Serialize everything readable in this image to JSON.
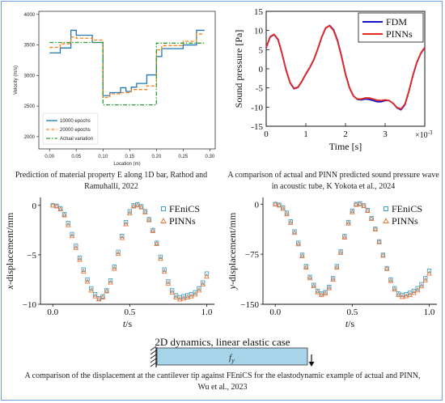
{
  "captions": {
    "panel_a": [
      "Prediction of material property E along 1D bar, Rathod and",
      "Ramuhalli, 2022"
    ],
    "panel_b": [
      "A comparison of actual and PINN predicted sound pressure wave",
      "in acoustic tube, K Yokota et al., 2024"
    ],
    "bottom": [
      "A comparison of the displacement at the cantilever tip against FEniCS for the elastodynamic example of actual and PINN,",
      "Wu et al., 2023"
    ]
  },
  "bottom_diagram": {
    "title": "2D dynamics, linear elastic case",
    "force_label": "f",
    "force_sub": "y"
  },
  "colors": {
    "epochs10000": "#1f77b4",
    "epochs20000": "#ff7f0e",
    "actual": "#2ca02c",
    "fdm": "#1414c8",
    "pinns_red": "#e8281e",
    "fenics": "#3aa3cc",
    "pinns_orange": "#e8773c",
    "beam": "#a8d4ea"
  },
  "chart_data": [
    {
      "type": "line",
      "xlabel": "Location (m)",
      "ylabel": "Velocity (m/s)",
      "xlim": [
        -0.02,
        0.31
      ],
      "ylim": [
        1800,
        4050
      ],
      "xticks": [
        0.0,
        0.05,
        0.1,
        0.15,
        0.2,
        0.25,
        0.3
      ],
      "xtick_labels": [
        "0.00",
        "0.05",
        "0.10",
        "0.15",
        "0.20",
        "0.25",
        "0.30"
      ],
      "yticks": [
        2000,
        2500,
        3000,
        3500,
        4000
      ],
      "ytick_labels": [
        "2000",
        "2500",
        "3000",
        "3500",
        "4000"
      ],
      "legend_position": "bottom-left",
      "series": [
        {
          "name": "10000 epochs",
          "color_key": "epochs10000",
          "dash": "solid",
          "x": [
            0.0,
            0.02,
            0.02,
            0.04,
            0.04,
            0.05,
            0.05,
            0.08,
            0.08,
            0.1,
            0.1,
            0.113,
            0.113,
            0.133,
            0.133,
            0.143,
            0.143,
            0.153,
            0.153,
            0.163,
            0.163,
            0.182,
            0.182,
            0.2,
            0.2,
            0.21,
            0.21,
            0.25,
            0.25,
            0.275,
            0.275,
            0.29
          ],
          "y": [
            3370,
            3370,
            3450,
            3450,
            3740,
            3740,
            3660,
            3660,
            3540,
            3540,
            2670,
            2670,
            2720,
            2720,
            2800,
            2800,
            2740,
            2740,
            2810,
            2810,
            2870,
            2870,
            3010,
            3010,
            3310,
            3310,
            3440,
            3440,
            3500,
            3500,
            3740,
            3740
          ]
        },
        {
          "name": "20000 epochs",
          "color_key": "epochs20000",
          "dash": "dashed",
          "x": [
            0.0,
            0.02,
            0.02,
            0.04,
            0.04,
            0.05,
            0.05,
            0.08,
            0.08,
            0.1,
            0.1,
            0.113,
            0.113,
            0.133,
            0.133,
            0.153,
            0.153,
            0.182,
            0.182,
            0.2,
            0.2,
            0.21,
            0.21,
            0.25,
            0.25,
            0.275,
            0.275,
            0.29
          ],
          "y": [
            3460,
            3460,
            3520,
            3520,
            3630,
            3630,
            3610,
            3610,
            3580,
            3580,
            2640,
            2640,
            2700,
            2700,
            2720,
            2720,
            2770,
            2770,
            2830,
            2830,
            3420,
            3420,
            3490,
            3490,
            3560,
            3560,
            3680,
            3680
          ]
        },
        {
          "name": "Actual variation",
          "color_key": "actual",
          "dash": "dashdot",
          "x": [
            0.0,
            0.1,
            0.1,
            0.2,
            0.2,
            0.29
          ],
          "y": [
            3540,
            3540,
            2520,
            2520,
            3530,
            3530
          ]
        }
      ]
    },
    {
      "type": "line",
      "xlabel": "Time [s]",
      "ylabel": "Sound pressure [Pa]",
      "x_multiplier": "×10",
      "x_multiplier_exp": "-3",
      "xlim": [
        0,
        4
      ],
      "ylim": [
        -15,
        15
      ],
      "xticks": [
        0,
        1,
        2,
        3
      ],
      "xtick_labels": [
        "0",
        "1",
        "2",
        "3"
      ],
      "yticks": [
        -15,
        -10,
        -5,
        0,
        5,
        10,
        15
      ],
      "ytick_labels": [
        "-15",
        "-10",
        "-5",
        "0",
        "5",
        "10",
        "15"
      ],
      "legend_position": "top-right",
      "series": [
        {
          "name": "FDM",
          "color_key": "fdm",
          "x": [
            0,
            0.1,
            0.2,
            0.3,
            0.4,
            0.5,
            0.6,
            0.7,
            0.8,
            0.9,
            1.0,
            1.1,
            1.2,
            1.3,
            1.4,
            1.5,
            1.6,
            1.7,
            1.8,
            1.9,
            2.0,
            2.1,
            2.2,
            2.3,
            2.4,
            2.5,
            2.6,
            2.7,
            2.8,
            2.9,
            3.0,
            3.1,
            3.2,
            3.3,
            3.4,
            3.5,
            3.6,
            3.7,
            3.8,
            3.9,
            4.0
          ],
          "y": [
            5.5,
            8.3,
            8.9,
            7.6,
            3.9,
            -0.3,
            -3.6,
            -5.2,
            -4.9,
            -3.3,
            -1.4,
            0.3,
            2.3,
            5.1,
            8.2,
            10.6,
            11.3,
            10.2,
            7.4,
            3.3,
            -1.3,
            -4.9,
            -7.1,
            -8.0,
            -8.1,
            -7.9,
            -8.0,
            -8.3,
            -8.6,
            -8.6,
            -8.3,
            -8.3,
            -9.0,
            -10.2,
            -10.7,
            -9.4,
            -5.9,
            -1.8,
            1.6,
            4.0,
            5.5
          ]
        },
        {
          "name": "PINNs",
          "color_key": "pinns_red",
          "x": [
            0,
            0.1,
            0.2,
            0.3,
            0.4,
            0.5,
            0.6,
            0.7,
            0.8,
            0.9,
            1.0,
            1.1,
            1.2,
            1.3,
            1.4,
            1.5,
            1.6,
            1.7,
            1.8,
            1.9,
            2.0,
            2.1,
            2.2,
            2.3,
            2.4,
            2.5,
            2.6,
            2.7,
            2.8,
            2.9,
            3.0,
            3.1,
            3.2,
            3.3,
            3.4,
            3.5,
            3.6,
            3.7,
            3.8,
            3.9,
            4.0
          ],
          "y": [
            5.6,
            8.4,
            9.0,
            7.7,
            4.0,
            -0.2,
            -3.5,
            -5.1,
            -4.8,
            -3.2,
            -1.3,
            0.4,
            2.4,
            5.2,
            8.3,
            10.7,
            11.2,
            10.0,
            7.2,
            3.1,
            -1.4,
            -5.0,
            -7.1,
            -7.9,
            -7.9,
            -7.6,
            -7.6,
            -7.9,
            -8.2,
            -8.3,
            -8.1,
            -8.3,
            -9.0,
            -10.1,
            -10.5,
            -9.2,
            -5.8,
            -1.7,
            1.7,
            4.1,
            5.6
          ]
        }
      ]
    },
    {
      "type": "scatter",
      "xlabel_var": "t",
      "xlabel_unit": "/s",
      "ylabel_var": "x",
      "ylabel_rest": "-displacement/mm",
      "xlim": [
        -0.08,
        1.05
      ],
      "ylim": [
        -10,
        0.8
      ],
      "xticks": [
        0,
        0.5,
        1.0
      ],
      "xtick_labels": [
        "0.0",
        "0.5",
        "1.0"
      ],
      "yticks": [
        0,
        -5,
        -10
      ],
      "ytick_labels": [
        "0",
        "−5",
        "−10"
      ],
      "legend_position": "top-right",
      "series": [
        {
          "name": "FEniCS",
          "marker": "square",
          "color_key": "fenics",
          "x": [
            0,
            0.025,
            0.05,
            0.075,
            0.1,
            0.125,
            0.15,
            0.175,
            0.2,
            0.225,
            0.25,
            0.275,
            0.3,
            0.325,
            0.35,
            0.375,
            0.4,
            0.425,
            0.45,
            0.475,
            0.5,
            0.525,
            0.55,
            0.575,
            0.6,
            0.625,
            0.65,
            0.675,
            0.7,
            0.725,
            0.75,
            0.775,
            0.8,
            0.825,
            0.85,
            0.875,
            0.9,
            0.925,
            0.95,
            0.975,
            1.0
          ],
          "y": [
            0,
            -0.05,
            -0.3,
            -0.9,
            -1.8,
            -2.9,
            -4.1,
            -5.3,
            -6.5,
            -7.5,
            -8.4,
            -9.0,
            -9.4,
            -9.2,
            -8.6,
            -7.6,
            -6.2,
            -4.7,
            -3.1,
            -1.7,
            -0.6,
            0.0,
            0.1,
            -0.1,
            -0.6,
            -1.4,
            -2.5,
            -3.8,
            -5.2,
            -6.5,
            -7.7,
            -8.6,
            -9.1,
            -9.3,
            -9.2,
            -9.1,
            -9.0,
            -8.8,
            -8.4,
            -7.8,
            -6.9
          ]
        },
        {
          "name": "PINNs",
          "marker": "triangle",
          "color_key": "pinns_orange",
          "x": [
            0,
            0.025,
            0.05,
            0.075,
            0.1,
            0.125,
            0.15,
            0.175,
            0.2,
            0.225,
            0.25,
            0.275,
            0.3,
            0.325,
            0.35,
            0.375,
            0.4,
            0.425,
            0.45,
            0.475,
            0.5,
            0.525,
            0.55,
            0.575,
            0.6,
            0.625,
            0.65,
            0.675,
            0.7,
            0.725,
            0.75,
            0.775,
            0.8,
            0.825,
            0.85,
            0.875,
            0.9,
            0.925,
            0.95,
            0.975,
            1.0
          ],
          "y": [
            0,
            -0.1,
            -0.4,
            -1.0,
            -2.0,
            -3.1,
            -4.3,
            -5.5,
            -6.7,
            -7.7,
            -8.6,
            -9.2,
            -9.5,
            -9.3,
            -8.7,
            -7.8,
            -6.4,
            -4.9,
            -3.3,
            -1.9,
            -0.8,
            -0.1,
            0.0,
            -0.2,
            -0.7,
            -1.5,
            -2.6,
            -3.9,
            -5.4,
            -6.7,
            -7.9,
            -8.8,
            -9.3,
            -9.5,
            -9.4,
            -9.3,
            -9.2,
            -9.0,
            -8.6,
            -8.0,
            -7.2
          ]
        }
      ]
    },
    {
      "type": "scatter",
      "xlabel_var": "t",
      "xlabel_unit": "/s",
      "ylabel_var": "y",
      "ylabel_rest": "-displacement/mm",
      "xlim": [
        -0.08,
        1.05
      ],
      "ylim": [
        -150,
        10
      ],
      "xticks": [
        0,
        0.5,
        1.0
      ],
      "xtick_labels": [
        "0.0",
        "0.5",
        "1.0"
      ],
      "yticks": [
        0,
        -75,
        -150
      ],
      "ytick_labels": [
        "0",
        "−75",
        "−150"
      ],
      "legend_position": "top-right",
      "series": [
        {
          "name": "FEniCS",
          "marker": "square",
          "color_key": "fenics",
          "x": [
            0,
            0.025,
            0.05,
            0.075,
            0.1,
            0.125,
            0.15,
            0.175,
            0.2,
            0.225,
            0.25,
            0.275,
            0.3,
            0.325,
            0.35,
            0.375,
            0.4,
            0.425,
            0.45,
            0.475,
            0.5,
            0.525,
            0.55,
            0.575,
            0.6,
            0.625,
            0.65,
            0.675,
            0.7,
            0.725,
            0.75,
            0.775,
            0.8,
            0.825,
            0.85,
            0.875,
            0.9,
            0.925,
            0.95,
            0.975,
            1.0
          ],
          "y": [
            0,
            -1,
            -5,
            -13,
            -26,
            -41,
            -58,
            -76,
            -93,
            -109,
            -121,
            -130,
            -134,
            -132,
            -124,
            -111,
            -93,
            -71,
            -48,
            -27,
            -10,
            0,
            1,
            -2,
            -9,
            -21,
            -37,
            -56,
            -76,
            -96,
            -113,
            -126,
            -134,
            -136,
            -135,
            -133,
            -130,
            -126,
            -120,
            -111,
            -100
          ]
        },
        {
          "name": "PINNs",
          "marker": "triangle",
          "color_key": "pinns_orange",
          "x": [
            0,
            0.025,
            0.05,
            0.075,
            0.1,
            0.125,
            0.15,
            0.175,
            0.2,
            0.225,
            0.25,
            0.275,
            0.3,
            0.325,
            0.35,
            0.375,
            0.4,
            0.425,
            0.45,
            0.475,
            0.5,
            0.525,
            0.55,
            0.575,
            0.6,
            0.625,
            0.65,
            0.675,
            0.7,
            0.725,
            0.75,
            0.775,
            0.8,
            0.825,
            0.85,
            0.875,
            0.9,
            0.925,
            0.95,
            0.975,
            1.0
          ],
          "y": [
            0,
            -2,
            -7,
            -15,
            -28,
            -43,
            -60,
            -78,
            -95,
            -111,
            -123,
            -132,
            -136,
            -134,
            -126,
            -113,
            -95,
            -73,
            -50,
            -29,
            -12,
            -1,
            0,
            -3,
            -10,
            -22,
            -38,
            -57,
            -77,
            -97,
            -115,
            -128,
            -136,
            -139,
            -138,
            -136,
            -133,
            -129,
            -123,
            -114,
            -104
          ]
        }
      ]
    }
  ]
}
